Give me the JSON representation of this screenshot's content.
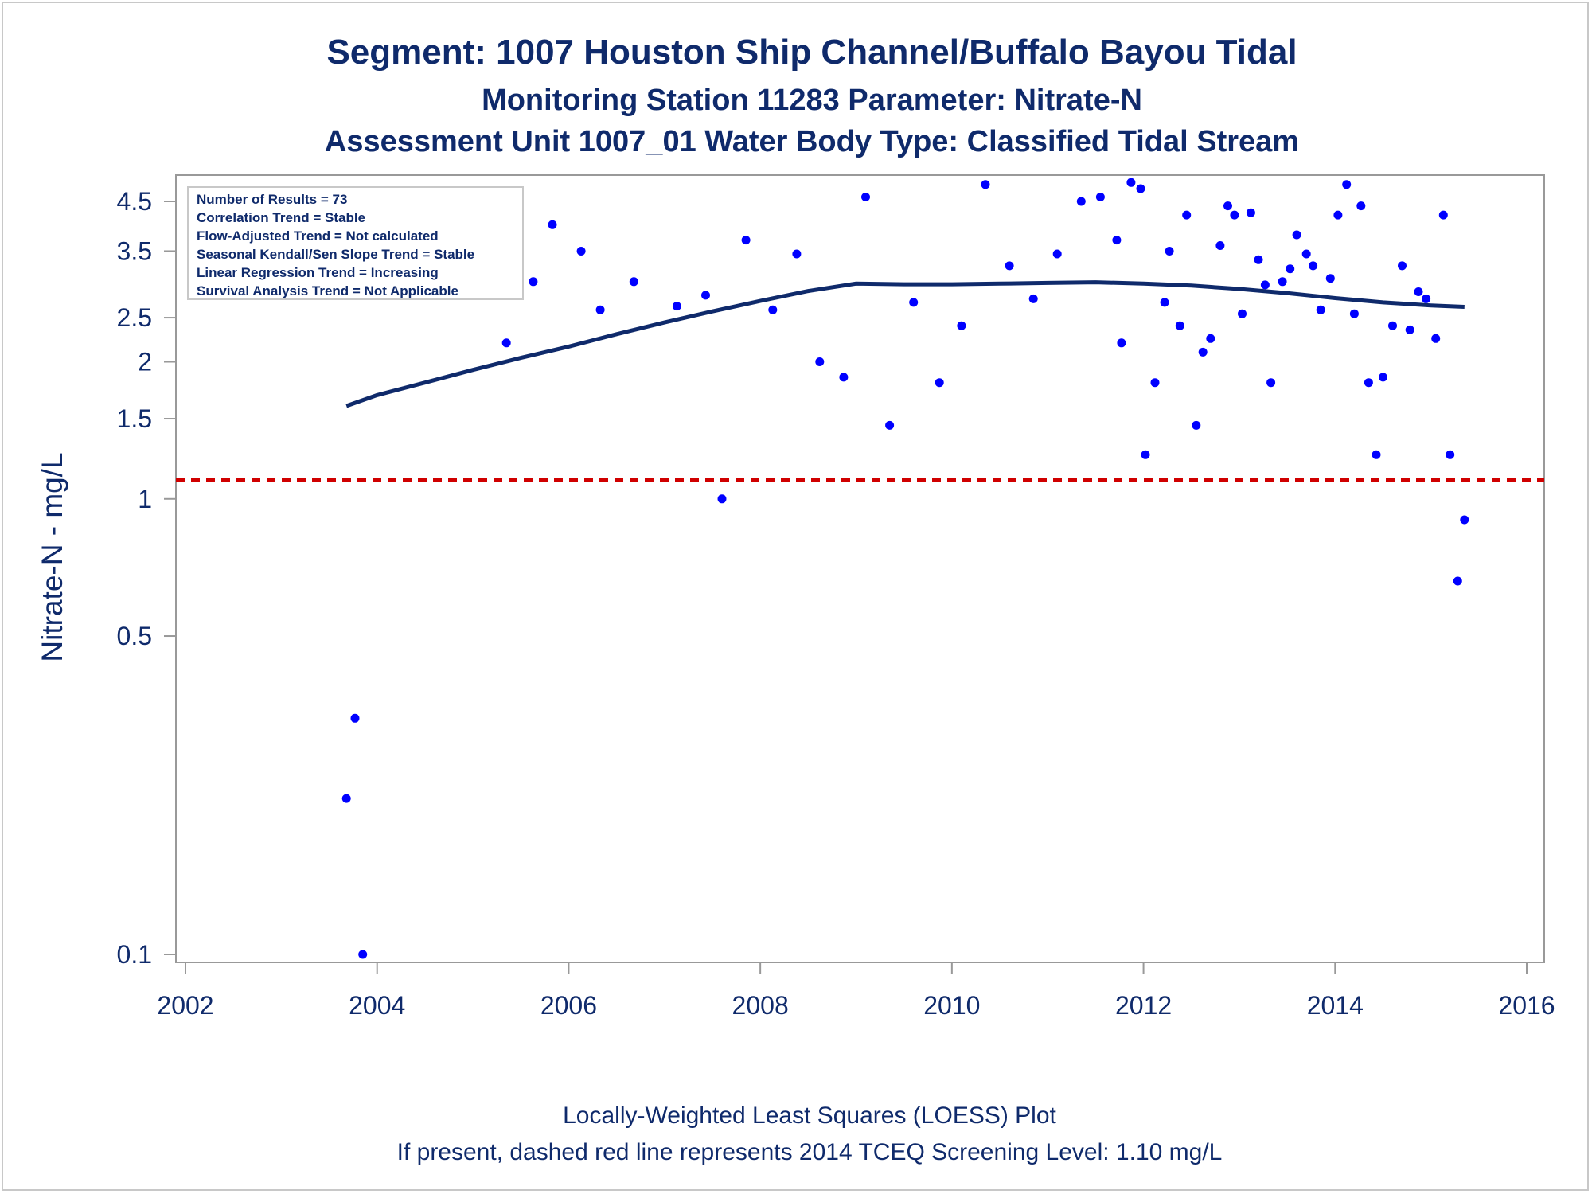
{
  "chart_data": {
    "type": "scatter",
    "title": "Segment: 1007  Houston Ship Channel/Buffalo Bayou Tidal",
    "subtitle": "Monitoring Station 11283 Parameter: Nitrate-N",
    "subtitle2": "Assessment Unit 1007_01   Water Body Type: Classified Tidal Stream",
    "ylabel": "Nitrate-N - mg/L",
    "xlabel": "",
    "footnote1": "Locally-Weighted Least Squares (LOESS) Plot",
    "footnote2": "If present, dashed red line represents 2014 TCEQ Screening Level: 1.10 mg/L",
    "yscale": "log",
    "xlim": [
      2002,
      2016
    ],
    "ylim": [
      0.095,
      5.1
    ],
    "x_ticks": [
      2002,
      2004,
      2006,
      2008,
      2010,
      2012,
      2014,
      2016
    ],
    "y_ticks": [
      0.1,
      0.5,
      1,
      1.5,
      2,
      2.5,
      3.5,
      4.5
    ],
    "y_tick_labels": [
      "0.1",
      "0.5",
      "1",
      "1.5",
      "2",
      "2.5",
      "3.5",
      "4.5"
    ],
    "screening_level": 1.1,
    "grid": false,
    "colors": {
      "points": "#0000ff",
      "loess": "#0f2a6b",
      "screening": "#d00000",
      "text": "#0f2a6b",
      "frame": "#999999"
    },
    "legend_box": {
      "placement": "top-left",
      "lines": [
        "Number of Results = 73",
        "Correlation Trend = Stable",
        "Flow-Adjusted Trend = Not calculated",
        "Seasonal Kendall/Sen Slope Trend = Stable",
        "Linear Regression Trend = Increasing",
        "Survival Analysis Trend = Not Applicable"
      ]
    },
    "series": [
      {
        "type": "scatter",
        "x": [
          2003.68,
          2003.77,
          2003.85,
          2005.35,
          2005.63,
          2005.83,
          2006.13,
          2006.33,
          2006.68,
          2007.13,
          2007.43,
          2007.6,
          2007.85,
          2008.13,
          2008.38,
          2008.62,
          2008.87,
          2009.1,
          2009.35,
          2009.6,
          2009.87,
          2010.1,
          2010.35,
          2010.6,
          2010.85,
          2011.1,
          2011.35,
          2011.55,
          2011.72,
          2011.77,
          2011.87,
          2011.97,
          2012.02,
          2012.12,
          2012.22,
          2012.27,
          2012.38,
          2012.45,
          2012.55,
          2012.62,
          2012.7,
          2012.8,
          2012.88,
          2012.95,
          2013.03,
          2013.12,
          2013.2,
          2013.27,
          2013.33,
          2013.45,
          2013.53,
          2013.6,
          2013.7,
          2013.77,
          2013.85,
          2013.95,
          2014.03,
          2014.12,
          2014.2,
          2014.27,
          2014.35,
          2014.43,
          2014.5,
          2014.6,
          2014.7,
          2014.78,
          2014.87,
          2014.95,
          2015.05,
          2015.13,
          2015.2,
          2015.28,
          2015.35
        ],
        "y": [
          0.22,
          0.33,
          0.1,
          2.2,
          3.0,
          4.0,
          3.5,
          2.6,
          3.0,
          2.65,
          2.8,
          1.0,
          3.7,
          2.6,
          3.45,
          2.0,
          1.85,
          4.6,
          1.45,
          2.7,
          1.8,
          2.4,
          4.9,
          3.25,
          2.75,
          3.45,
          4.5,
          4.6,
          3.7,
          2.2,
          4.95,
          4.8,
          1.25,
          1.8,
          2.7,
          3.5,
          2.4,
          4.2,
          1.45,
          2.1,
          2.25,
          3.6,
          4.4,
          4.2,
          2.55,
          4.25,
          3.35,
          2.95,
          1.8,
          3.0,
          3.2,
          3.8,
          3.45,
          3.25,
          2.6,
          3.05,
          4.2,
          4.9,
          2.55,
          4.4,
          1.8,
          1.25,
          1.85,
          2.4,
          3.25,
          2.35,
          2.85,
          2.75,
          2.25,
          4.2,
          1.25,
          0.66,
          0.9
        ]
      },
      {
        "type": "line",
        "x": [
          2003.68,
          2004.0,
          2004.5,
          2005.0,
          2005.5,
          2006.0,
          2006.5,
          2007.0,
          2007.5,
          2008.0,
          2008.5,
          2009.0,
          2009.5,
          2010.0,
          2010.5,
          2011.0,
          2011.5,
          2012.0,
          2012.5,
          2013.0,
          2013.5,
          2014.0,
          2014.5,
          2015.0,
          2015.35
        ],
        "y": [
          1.6,
          1.69,
          1.8,
          1.92,
          2.04,
          2.16,
          2.3,
          2.44,
          2.58,
          2.72,
          2.86,
          2.97,
          2.96,
          2.96,
          2.97,
          2.98,
          2.99,
          2.97,
          2.94,
          2.89,
          2.83,
          2.76,
          2.7,
          2.66,
          2.64
        ]
      }
    ]
  }
}
